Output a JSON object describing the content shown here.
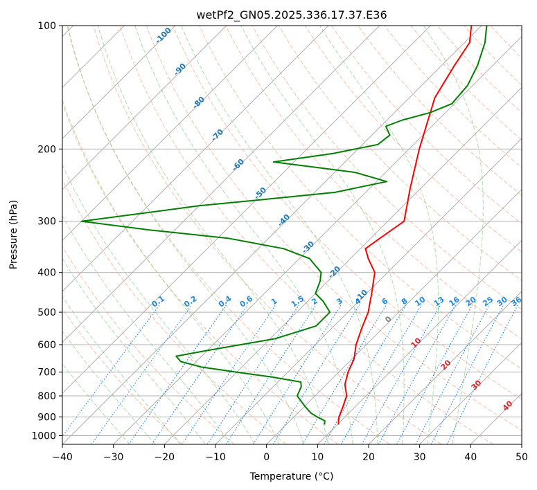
{
  "chart_data": {
    "type": "line",
    "title": "wetPf2_GN05.2025.336.17.37.E36",
    "xlabel": "Temperature (°C)",
    "ylabel": "Pressure (hPa)",
    "xlim": [
      -40,
      50
    ],
    "ylim": [
      1050,
      100
    ],
    "y_scale": "log",
    "skew": true,
    "x_ticks": [
      -40,
      -30,
      -20,
      -10,
      0,
      10,
      20,
      30,
      40,
      50
    ],
    "y_ticks": [
      100,
      200,
      300,
      400,
      500,
      600,
      700,
      800,
      900,
      1000
    ],
    "grid": true,
    "series": [
      {
        "role": "temperature",
        "color": "#ff0000",
        "points": [
          {
            "p": 940,
            "t": 10.2
          },
          {
            "p": 900,
            "t": 8.8
          },
          {
            "p": 850,
            "t": 7.6
          },
          {
            "p": 800,
            "t": 6.2
          },
          {
            "p": 750,
            "t": 3.6
          },
          {
            "p": 700,
            "t": 1.8
          },
          {
            "p": 650,
            "t": 0.4
          },
          {
            "p": 600,
            "t": -2.0
          },
          {
            "p": 550,
            "t": -4.0
          },
          {
            "p": 500,
            "t": -6.0
          },
          {
            "p": 450,
            "t": -9.0
          },
          {
            "p": 400,
            "t": -12.5
          },
          {
            "p": 370,
            "t": -16.5
          },
          {
            "p": 350,
            "t": -19.0
          },
          {
            "p": 330,
            "t": -18.2
          },
          {
            "p": 300,
            "t": -16.8
          },
          {
            "p": 250,
            "t": -22.0
          },
          {
            "p": 200,
            "t": -28.0
          },
          {
            "p": 150,
            "t": -35.0
          },
          {
            "p": 125,
            "t": -37.5
          },
          {
            "p": 110,
            "t": -39.0
          },
          {
            "p": 100,
            "t": -42.0
          }
        ]
      },
      {
        "role": "dewpoint",
        "color": "#008000",
        "points": [
          {
            "p": 940,
            "t": 7.5
          },
          {
            "p": 920,
            "t": 6.8
          },
          {
            "p": 900,
            "t": 4.5
          },
          {
            "p": 880,
            "t": 2.5
          },
          {
            "p": 850,
            "t": 0.2
          },
          {
            "p": 800,
            "t": -3.5
          },
          {
            "p": 760,
            "t": -4.5
          },
          {
            "p": 740,
            "t": -5.5
          },
          {
            "p": 720,
            "t": -12.0
          },
          {
            "p": 700,
            "t": -20.0
          },
          {
            "p": 680,
            "t": -28.0
          },
          {
            "p": 660,
            "t": -33.0
          },
          {
            "p": 640,
            "t": -35.0
          },
          {
            "p": 620,
            "t": -30.0
          },
          {
            "p": 580,
            "t": -19.0
          },
          {
            "p": 540,
            "t": -13.5
          },
          {
            "p": 500,
            "t": -13.5
          },
          {
            "p": 470,
            "t": -17.0
          },
          {
            "p": 450,
            "t": -20.0
          },
          {
            "p": 420,
            "t": -21.5
          },
          {
            "p": 400,
            "t": -23.0
          },
          {
            "p": 370,
            "t": -28.0
          },
          {
            "p": 350,
            "t": -35.0
          },
          {
            "p": 330,
            "t": -48.0
          },
          {
            "p": 315,
            "t": -65.0
          },
          {
            "p": 300,
            "t": -80.0
          },
          {
            "p": 275,
            "t": -60.0
          },
          {
            "p": 265,
            "t": -48.0
          },
          {
            "p": 255,
            "t": -36.0
          },
          {
            "p": 240,
            "t": -28.0
          },
          {
            "p": 228,
            "t": -36.0
          },
          {
            "p": 215,
            "t": -54.0
          },
          {
            "p": 205,
            "t": -44.0
          },
          {
            "p": 195,
            "t": -37.0
          },
          {
            "p": 185,
            "t": -36.5
          },
          {
            "p": 176,
            "t": -39.0
          },
          {
            "p": 170,
            "t": -37.0
          },
          {
            "p": 163,
            "t": -33.0
          },
          {
            "p": 155,
            "t": -30.5
          },
          {
            "p": 140,
            "t": -31.0
          },
          {
            "p": 125,
            "t": -33.0
          },
          {
            "p": 110,
            "t": -36.0
          },
          {
            "p": 100,
            "t": -39.0
          }
        ]
      }
    ],
    "dry_adiabat_thetas_c": [
      -20,
      -10,
      0,
      10,
      20,
      30,
      40,
      50,
      60,
      70,
      80,
      90,
      100,
      110,
      120,
      130,
      140,
      150,
      160,
      170,
      180,
      190
    ],
    "moist_adiabat_labels": [
      "-100",
      "-90",
      "-80",
      "-70",
      "-60",
      "-50",
      "-40",
      "-30",
      "-20",
      "-10",
      "0",
      "10",
      "20",
      "30",
      "40"
    ],
    "mixing_ratio_labels": [
      "0.1",
      "0.2",
      "0.4",
      "0.6",
      "1",
      "1.5",
      "2",
      "3",
      "4",
      "6",
      "8",
      "10",
      "13",
      "16",
      "20",
      "25",
      "30",
      "36"
    ],
    "colors": {
      "temperature": "#ff0000",
      "dewpoint": "#008000",
      "dry_adiabat": "#f4a582",
      "moist_adiabat": "#74c476",
      "mixing_ratio": "#1e88e5",
      "grid": "#b0b0b0",
      "label_blue": "#1f77b4",
      "label_red": "#d62728",
      "label_gray": "#808080"
    }
  }
}
